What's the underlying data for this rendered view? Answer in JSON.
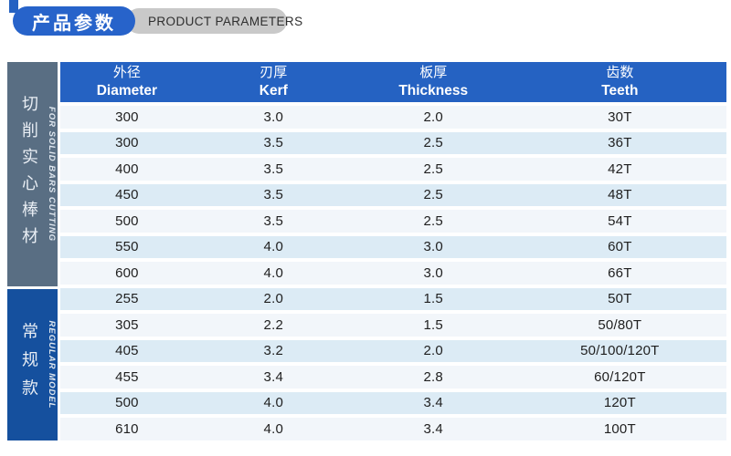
{
  "badge": {
    "title_zh": "产品参数",
    "title_en": "PRODUCT PARAMETERS"
  },
  "colors": {
    "accent": "#2562c2",
    "pill_blue": "#2763ca",
    "pill_gray": "#c9c9c9",
    "sidebar_gray": "#596e83",
    "sidebar_blue": "#15509e",
    "row_light": "#f2f6fa",
    "row_dark": "#dcebf5"
  },
  "table": {
    "columns": [
      {
        "zh": "外径",
        "en": "Diameter"
      },
      {
        "zh": "刃厚",
        "en": "Kerf"
      },
      {
        "zh": "板厚",
        "en": "Thickness"
      },
      {
        "zh": "齿数",
        "en": "Teeth"
      }
    ],
    "sections": [
      {
        "zh": "切削实心棒材",
        "en": "FOR SOLID BARS CUTTING",
        "rows": [
          [
            "300",
            "3.0",
            "2.0",
            "30T"
          ],
          [
            "300",
            "3.5",
            "2.5",
            "36T"
          ],
          [
            "400",
            "3.5",
            "2.5",
            "42T"
          ],
          [
            "450",
            "3.5",
            "2.5",
            "48T"
          ],
          [
            "500",
            "3.5",
            "2.5",
            "54T"
          ],
          [
            "550",
            "4.0",
            "3.0",
            "60T"
          ],
          [
            "600",
            "4.0",
            "3.0",
            "66T"
          ]
        ]
      },
      {
        "zh": "常规款",
        "en": "REGULAR MODEL",
        "rows": [
          [
            "255",
            "2.0",
            "1.5",
            "50T"
          ],
          [
            "305",
            "2.2",
            "1.5",
            "50/80T"
          ],
          [
            "405",
            "3.2",
            "2.0",
            "50/100/120T"
          ],
          [
            "455",
            "3.4",
            "2.8",
            "60/120T"
          ],
          [
            "500",
            "4.0",
            "3.4",
            "120T"
          ],
          [
            "610",
            "4.0",
            "3.4",
            "100T"
          ]
        ]
      }
    ]
  }
}
